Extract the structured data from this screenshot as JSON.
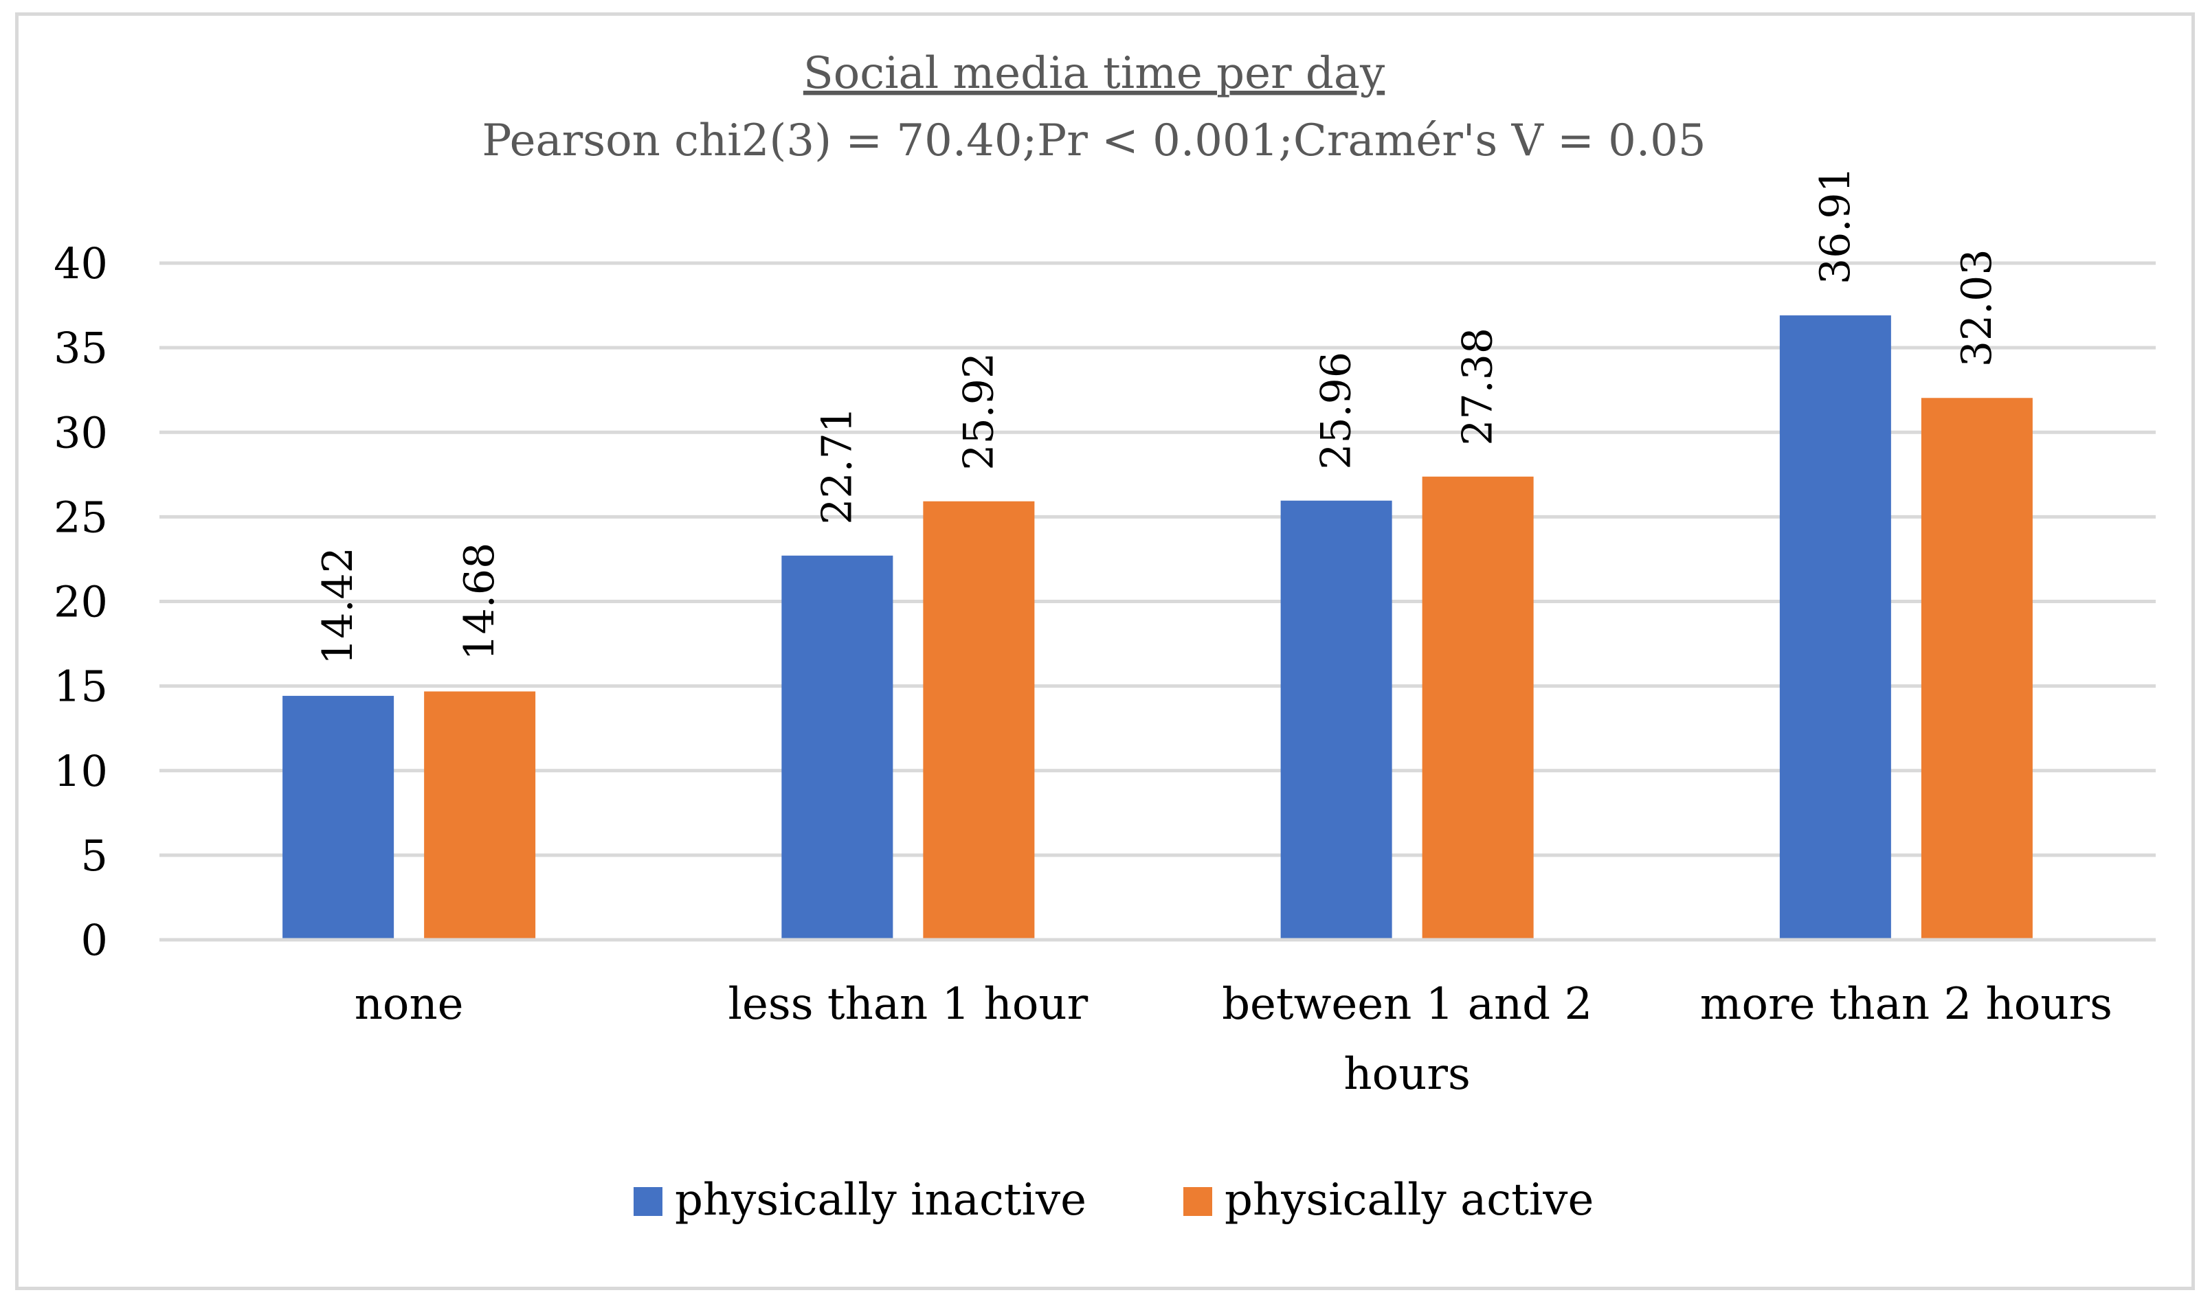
{
  "chart_data": {
    "type": "bar",
    "title": "Social media time per day",
    "subtitle": "Pearson chi2(3) = 70.40;Pr < 0.001;Cramér's V = 0.05",
    "xlabel": "",
    "ylabel": "",
    "ylim": [
      0,
      40
    ],
    "yticks": [
      "0",
      "5",
      "10",
      "15",
      "20",
      "25",
      "30",
      "35",
      "40"
    ],
    "categories": [
      [
        "none"
      ],
      [
        "less than 1 hour"
      ],
      [
        "between 1 and 2",
        "hours"
      ],
      [
        "more than 2 hours"
      ]
    ],
    "series": [
      {
        "name": "physically inactive",
        "color": "#4472c4",
        "values": [
          14.42,
          22.71,
          25.96,
          36.91
        ],
        "labels": [
          "14.42",
          "22.71",
          "25.96",
          "36.91"
        ]
      },
      {
        "name": "physically active",
        "color": "#ed7d31",
        "values": [
          14.68,
          25.92,
          27.38,
          32.03
        ],
        "labels": [
          "14.68",
          "25.92",
          "27.38",
          "32.03"
        ]
      }
    ],
    "grid": true,
    "legend_position": "bottom"
  }
}
